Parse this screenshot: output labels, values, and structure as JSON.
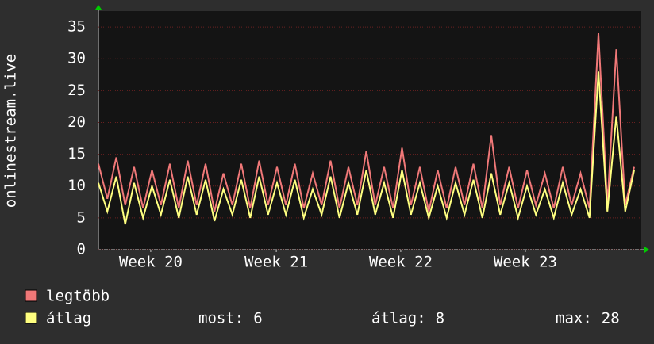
{
  "chart_data": {
    "type": "line",
    "ylabel": "onlinestream.live",
    "x": [
      0,
      0.5,
      1,
      1.5,
      2,
      2.5,
      3,
      3.5,
      4,
      4.5,
      5,
      5.5,
      6,
      6.5,
      7,
      7.5,
      8,
      8.5,
      9,
      9.5,
      10,
      10.5,
      11,
      11.5,
      12,
      12.5,
      13,
      13.5,
      14,
      14.5,
      15,
      15.5,
      16,
      16.5,
      17,
      17.5,
      18,
      18.5,
      19,
      19.5,
      20,
      20.5,
      21,
      21.5,
      22,
      22.5,
      23,
      23.5,
      24,
      24.5,
      25,
      25.5,
      26,
      26.5,
      27,
      27.5,
      28,
      28.5,
      29,
      29.5,
      30
    ],
    "series": [
      {
        "name": "legtöbb",
        "color": "#f07878",
        "values": [
          13.5,
          8,
          14.5,
          7,
          13,
          6.5,
          12.5,
          7,
          13.5,
          6.5,
          14,
          7,
          13.5,
          6,
          12,
          7,
          13.5,
          6.5,
          14,
          7,
          13,
          7,
          13.5,
          6.5,
          12,
          7,
          14,
          6.5,
          13,
          7,
          15.5,
          7,
          13,
          6.5,
          16,
          7,
          13,
          6,
          12.5,
          6.5,
          13,
          7,
          13.5,
          6.5,
          18,
          7,
          13,
          6.5,
          12.5,
          7,
          12,
          6.5,
          13,
          7,
          12,
          6.5,
          34,
          7,
          31.5,
          7,
          13
        ]
      },
      {
        "name": "átlag",
        "color": "#ffff80",
        "values": [
          10.5,
          6,
          11.5,
          4,
          10.5,
          5,
          10,
          5.5,
          11,
          5,
          11.5,
          5.5,
          11,
          4.5,
          9.5,
          5.5,
          11,
          5,
          11.5,
          5.5,
          10.5,
          5.5,
          11,
          5,
          9.5,
          5.5,
          11.5,
          5,
          10.5,
          5.5,
          12.5,
          5.5,
          10.5,
          5,
          12.5,
          5.5,
          10.5,
          5,
          10,
          5,
          10.5,
          5.5,
          11,
          5,
          12,
          5.5,
          10.5,
          5,
          10,
          5.5,
          9.5,
          5,
          10.5,
          5.5,
          9.5,
          5,
          28,
          6,
          21,
          6,
          12.5
        ]
      }
    ],
    "xlim": [
      0,
      30.4
    ],
    "xticks": [
      {
        "value": 2.93,
        "label": "Week 20"
      },
      {
        "value": 9.96,
        "label": "Week 21"
      },
      {
        "value": 16.93,
        "label": "Week 22"
      },
      {
        "value": 23.91,
        "label": "Week 23"
      }
    ],
    "ylim": [
      0,
      37.5
    ],
    "yticks": [
      0,
      5,
      10,
      15,
      20,
      25,
      30,
      35
    ],
    "grid": true,
    "stats": [
      {
        "label": "most:",
        "value": 6
      },
      {
        "label": "átlag:",
        "value": 8
      },
      {
        "label": "max:",
        "value": 28
      }
    ]
  }
}
